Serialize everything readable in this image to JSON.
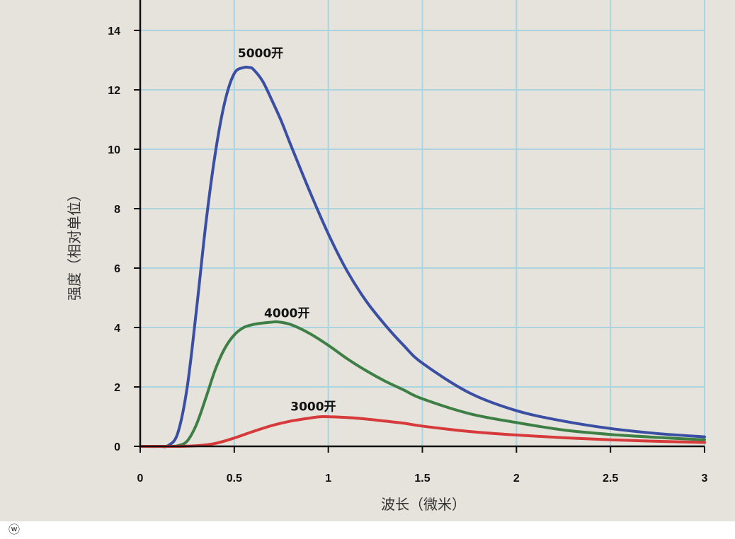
{
  "chart_data": {
    "type": "line",
    "xlabel": "波长（微米）",
    "ylabel": "强度（相对单位）",
    "xlim": [
      0,
      3
    ],
    "ylim": [
      0,
      15
    ],
    "x_ticks": [
      "0",
      "0.5",
      "1",
      "1.5",
      "2",
      "2.5",
      "3"
    ],
    "y_ticks": [
      "0",
      "2",
      "4",
      "6",
      "8",
      "10",
      "12",
      "14"
    ],
    "grid": true,
    "series": [
      {
        "name": "5000开",
        "color": "#3a4fa3",
        "x": [
          0.1,
          0.15,
          0.2,
          0.25,
          0.3,
          0.35,
          0.4,
          0.45,
          0.5,
          0.55,
          0.58,
          0.6,
          0.65,
          0.7,
          0.75,
          0.8,
          0.9,
          1.0,
          1.1,
          1.2,
          1.3,
          1.4,
          1.5,
          1.75,
          2.0,
          2.25,
          2.5,
          2.75,
          3.0
        ],
        "y": [
          0.0,
          0.03,
          0.45,
          2.0,
          4.65,
          7.55,
          9.9,
          11.6,
          12.55,
          12.75,
          12.75,
          12.7,
          12.3,
          11.65,
          10.95,
          10.15,
          8.6,
          7.15,
          5.9,
          4.9,
          4.1,
          3.4,
          2.8,
          1.8,
          1.2,
          0.85,
          0.6,
          0.43,
          0.32
        ]
      },
      {
        "name": "4000开",
        "color": "#3e7f45",
        "x": [
          0.1,
          0.15,
          0.2,
          0.25,
          0.3,
          0.35,
          0.4,
          0.45,
          0.5,
          0.55,
          0.6,
          0.65,
          0.7,
          0.73,
          0.8,
          0.9,
          1.0,
          1.1,
          1.2,
          1.3,
          1.4,
          1.5,
          1.75,
          2.0,
          2.25,
          2.5,
          2.75,
          3.0
        ],
        "y": [
          0.0,
          0.0,
          0.02,
          0.18,
          0.75,
          1.65,
          2.6,
          3.3,
          3.75,
          4.0,
          4.1,
          4.15,
          4.18,
          4.19,
          4.1,
          3.8,
          3.4,
          2.95,
          2.55,
          2.2,
          1.9,
          1.6,
          1.1,
          0.8,
          0.55,
          0.4,
          0.3,
          0.22
        ]
      },
      {
        "name": "3000开",
        "color": "#d63a3a",
        "x": [
          0.1,
          0.2,
          0.3,
          0.4,
          0.5,
          0.6,
          0.7,
          0.8,
          0.9,
          0.97,
          1.1,
          1.2,
          1.3,
          1.4,
          1.5,
          1.75,
          2.0,
          2.25,
          2.5,
          2.75,
          3.0
        ],
        "y": [
          0.0,
          0.0,
          0.02,
          0.1,
          0.28,
          0.5,
          0.7,
          0.85,
          0.95,
          1.0,
          0.97,
          0.92,
          0.85,
          0.78,
          0.68,
          0.5,
          0.38,
          0.29,
          0.22,
          0.17,
          0.13
        ]
      }
    ],
    "annotations": [
      {
        "text": "5000开",
        "x": 0.64,
        "y": 13.1
      },
      {
        "text": "4000开",
        "x": 0.78,
        "y": 4.35
      },
      {
        "text": "3000开",
        "x": 0.92,
        "y": 1.2
      }
    ]
  },
  "watermark": "ⓦ"
}
